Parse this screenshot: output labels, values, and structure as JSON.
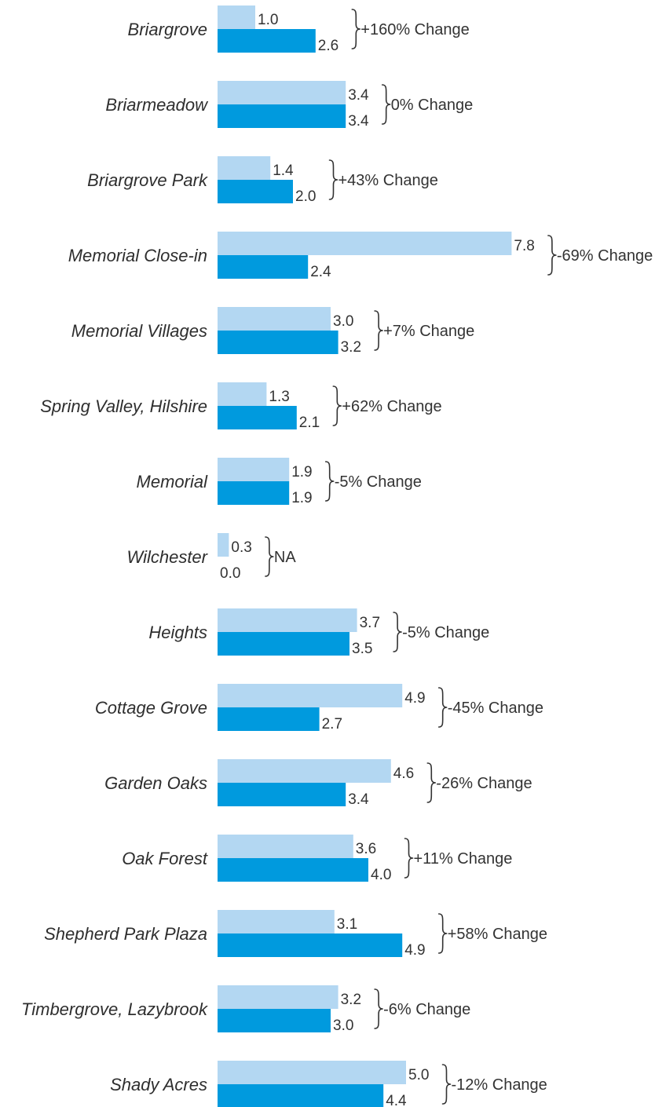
{
  "chart_data": {
    "type": "bar",
    "orientation": "horizontal",
    "categories": [
      "Briargrove",
      "Briarmeadow",
      "Briargrove Park",
      "Memorial Close-in",
      "Memorial Villages",
      "Spring Valley, Hilshire",
      "Memorial",
      "Wilchester",
      "Heights",
      "Cottage Grove",
      "Garden Oaks",
      "Oak Forest",
      "Shepherd Park Plaza",
      "Timbergrove, Lazybrook",
      "Shady Acres"
    ],
    "series": [
      {
        "color": "#b3d7f2",
        "values": [
          1.0,
          3.4,
          1.4,
          7.8,
          3.0,
          1.3,
          1.9,
          0.3,
          3.7,
          4.9,
          4.6,
          3.6,
          3.1,
          3.2,
          5.0
        ],
        "labels": [
          "1.0",
          "3.4",
          "1.4",
          "7.8",
          "3.0",
          "1.3",
          "1.9",
          "0.3",
          "3.7",
          "4.9",
          "4.6",
          "3.6",
          "3.1",
          "3.2",
          "5.0"
        ]
      },
      {
        "color": "#009ade",
        "values": [
          2.6,
          3.4,
          2.0,
          2.4,
          3.2,
          2.1,
          1.9,
          0.0,
          3.5,
          2.7,
          3.4,
          4.0,
          4.9,
          3.0,
          4.4
        ],
        "labels": [
          "2.6",
          "3.4",
          "2.0",
          "2.4",
          "3.2",
          "2.1",
          "1.9",
          "0.0",
          "3.5",
          "2.7",
          "3.4",
          "4.0",
          "4.9",
          "3.0",
          "4.4"
        ]
      }
    ],
    "changes": [
      "+160% Change",
      "0% Change",
      "+43% Change",
      "-69% Change",
      "+7% Change",
      "+62% Change",
      "-5% Change",
      "NA",
      "-5% Change",
      "-45% Change",
      "-26% Change",
      "+11% Change",
      "+58% Change",
      "-6% Change",
      "-12% Change"
    ],
    "title": "",
    "xlabel": "",
    "ylabel": "",
    "xlim": [
      0,
      7.8
    ],
    "grid": false,
    "legend": "none"
  }
}
